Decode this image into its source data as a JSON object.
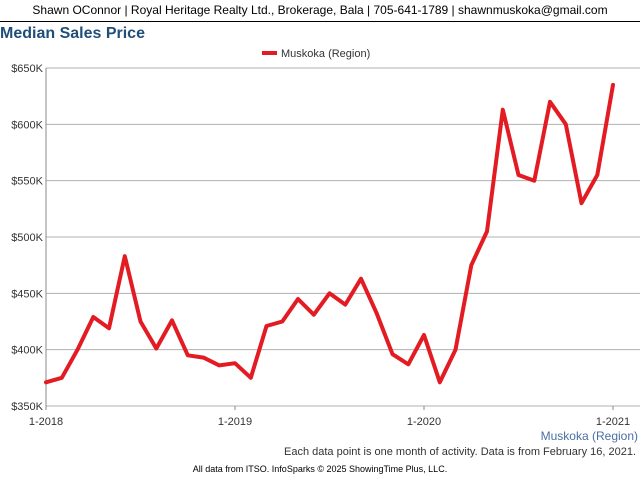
{
  "header": {
    "text": "Shawn OConnor | Royal Heritage Realty Ltd., Brokerage, Bala | 705-641-1789 | shawnmuskoka@gmail.com"
  },
  "footer": {
    "note": "Each data point is one month of activity. Data is from February 16, 2021.",
    "source": "All data from ITSO. InfoSparks © 2025 ShowingTime Plus, LLC."
  },
  "colors": {
    "series": "#e31b23",
    "title": "#1f4e79",
    "region_label": "#4a6fa5",
    "grid": "#b0b0b0"
  },
  "chart_data": {
    "type": "line",
    "title": "Median Sales Price",
    "ylim": [
      350000,
      650000
    ],
    "yticks": [
      {
        "value": 350000,
        "label": "$350K"
      },
      {
        "value": 400000,
        "label": "$400K"
      },
      {
        "value": 450000,
        "label": "$450K"
      },
      {
        "value": 500000,
        "label": "$500K"
      },
      {
        "value": 550000,
        "label": "$550K"
      },
      {
        "value": 600000,
        "label": "$600K"
      },
      {
        "value": 650000,
        "label": "$650K"
      }
    ],
    "xticks": [
      {
        "index": 0,
        "label": "1-2018"
      },
      {
        "index": 12,
        "label": "1-2019"
      },
      {
        "index": 24,
        "label": "1-2020"
      },
      {
        "index": 36,
        "label": "1-2021"
      }
    ],
    "grid": true,
    "legend": "top-center",
    "x": [
      "1-2018",
      "2-2018",
      "3-2018",
      "4-2018",
      "5-2018",
      "6-2018",
      "7-2018",
      "8-2018",
      "9-2018",
      "10-2018",
      "11-2018",
      "12-2018",
      "1-2019",
      "2-2019",
      "3-2019",
      "4-2019",
      "5-2019",
      "6-2019",
      "7-2019",
      "8-2019",
      "9-2019",
      "10-2019",
      "11-2019",
      "12-2019",
      "1-2020",
      "2-2020",
      "3-2020",
      "4-2020",
      "5-2020",
      "6-2020",
      "7-2020",
      "8-2020",
      "9-2020",
      "10-2020",
      "11-2020",
      "12-2020",
      "1-2021"
    ],
    "series": [
      {
        "name": "Muskoka (Region)",
        "values": [
          371000,
          375000,
          400000,
          429000,
          419000,
          483000,
          425000,
          401000,
          426000,
          395000,
          393000,
          386000,
          388000,
          375000,
          421000,
          425000,
          445000,
          431000,
          450000,
          440000,
          463000,
          432000,
          396000,
          387000,
          413000,
          371000,
          400000,
          475000,
          505000,
          613000,
          555000,
          550000,
          620000,
          600000,
          530000,
          555000,
          635000
        ]
      }
    ],
    "region_label": "Muskoka (Region)"
  }
}
